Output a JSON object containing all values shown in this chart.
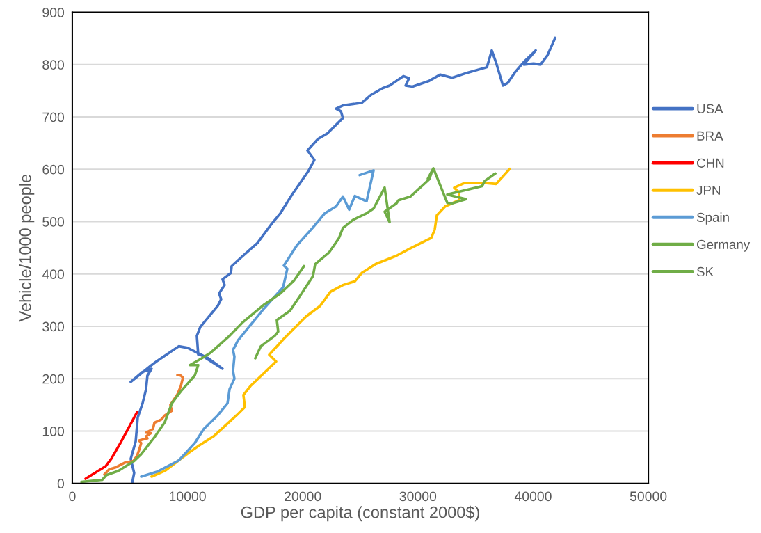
{
  "chart_data": {
    "type": "line",
    "xlabel": "GDP per capita (constant 2000$)",
    "ylabel": "Vehicle/1000 people",
    "xlim": [
      0,
      50000
    ],
    "ylim": [
      0,
      900
    ],
    "xticks": [
      0,
      10000,
      20000,
      30000,
      40000,
      50000
    ],
    "yticks": [
      0,
      100,
      200,
      300,
      400,
      500,
      600,
      700,
      800,
      900
    ],
    "grid": "y",
    "legend": "right",
    "marker": "none",
    "line_style": "solid",
    "series": [
      {
        "name": "USA",
        "color": "#4472c4",
        "x": [
          5190,
          5370,
          5070,
          5500,
          5680,
          6100,
          6400,
          6520,
          6880,
          6100,
          5070,
          6880,
          7300,
          9240,
          10000,
          11800,
          13040,
          11200,
          10930,
          10810,
          11110,
          12620,
          12920,
          12740,
          13220,
          13040,
          13770,
          13830,
          14670,
          16060,
          17270,
          18060,
          19080,
          20470,
          21010,
          20410,
          21320,
          22100,
          23490,
          23310,
          22890,
          23490,
          25120,
          25910,
          26930,
          27540,
          28740,
          29230,
          28930,
          29530,
          30980,
          31940,
          32970,
          34360,
          35990,
          36410,
          36780,
          37380,
          37800,
          38410,
          39190,
          40220,
          39190,
          40040,
          40640,
          41250,
          41910
        ],
        "values": [
          0,
          20,
          47,
          80,
          126,
          153,
          180,
          206,
          219,
          213,
          194,
          226,
          233,
          262,
          259,
          239,
          219,
          245,
          246,
          282,
          299,
          339,
          352,
          363,
          379,
          390,
          402,
          415,
          432,
          459,
          495,
          516,
          552,
          596,
          618,
          636,
          658,
          668,
          698,
          711,
          716,
          722,
          727,
          742,
          755,
          760,
          778,
          774,
          760,
          758,
          769,
          781,
          775,
          785,
          795,
          827,
          804,
          760,
          765,
          785,
          805,
          827,
          800,
          802,
          800,
          818,
          851
        ]
      },
      {
        "name": "BRA",
        "color": "#ed7d31",
        "x": [
          2780,
          3200,
          3800,
          4590,
          5310,
          5620,
          5800,
          5980,
          5800,
          6520,
          6400,
          6820,
          6400,
          7000,
          7130,
          7730,
          8030,
          8640,
          8510,
          9120,
          9420,
          9600,
          9420,
          9120
        ],
        "values": [
          17,
          27,
          31,
          40,
          43,
          53,
          64,
          77,
          82,
          86,
          90,
          96,
          97,
          104,
          116,
          122,
          130,
          139,
          150,
          170,
          186,
          202,
          206,
          207
        ]
      },
      {
        "name": "CHN",
        "color": "#ff0000",
        "x": [
          1150,
          2900,
          3380,
          4170,
          5620
        ],
        "values": [
          9,
          33,
          47,
          77,
          136
        ]
      },
      {
        "name": "JPN",
        "color": "#ffc000",
        "x": [
          6880,
          8030,
          9240,
          10200,
          11050,
          12260,
          14250,
          14980,
          14850,
          15460,
          17690,
          17090,
          18480,
          20290,
          21500,
          22400,
          23490,
          24520,
          25120,
          26330,
          28140,
          29350,
          31160,
          31460,
          31640,
          32360,
          33570,
          33570,
          33150,
          34060,
          35810,
          36780,
          37980
        ],
        "values": [
          13,
          24,
          44,
          60,
          73,
          90,
          130,
          146,
          169,
          186,
          233,
          246,
          279,
          319,
          339,
          366,
          379,
          386,
          402,
          419,
          435,
          449,
          469,
          485,
          512,
          529,
          541,
          556,
          565,
          574,
          574,
          572,
          601
        ]
      },
      {
        "name": "Spain",
        "color": "#5b9bd5",
        "x": [
          5980,
          7430,
          9240,
          10630,
          11410,
          12620,
          13470,
          13650,
          14070,
          13950,
          14070,
          13950,
          14370,
          14850,
          16670,
          18300,
          18660,
          18360,
          19500,
          20890,
          21920,
          22890,
          23490,
          24030,
          24520,
          25540,
          26150,
          24940
        ],
        "values": [
          13,
          23,
          44,
          77,
          104,
          130,
          153,
          180,
          200,
          215,
          242,
          255,
          273,
          286,
          335,
          375,
          410,
          416,
          455,
          489,
          516,
          529,
          548,
          523,
          549,
          539,
          598,
          589
        ]
      },
      {
        "name": "Germany",
        "color": "#70ad47",
        "x": [
          15880,
          16360,
          17570,
          17870,
          17750,
          18900,
          19870,
          20890,
          21080,
          22280,
          23130,
          23490,
          24340,
          25540,
          26150,
          27110,
          27540,
          27110,
          28140,
          28320,
          29350,
          30980,
          31160,
          30860,
          31340,
          32550,
          32970,
          34180,
          32550,
          35570,
          35810,
          36720
        ],
        "values": [
          239,
          262,
          282,
          290,
          312,
          330,
          362,
          396,
          419,
          441,
          468,
          488,
          503,
          516,
          525,
          565,
          499,
          519,
          535,
          541,
          548,
          581,
          592,
          582,
          602,
          536,
          535,
          543,
          552,
          568,
          578,
          592
        ]
      },
      {
        "name": "SK",
        "color": "#70ad47",
        "x": [
          790,
          2600,
          2960,
          3990,
          5370,
          5980,
          7190,
          8030,
          8640,
          9420,
          10630,
          10930,
          10200,
          11230,
          12020,
          13650,
          14850,
          16670,
          18060,
          19260,
          20110
        ],
        "values": [
          3,
          7,
          16,
          24,
          43,
          56,
          90,
          117,
          153,
          176,
          206,
          226,
          226,
          239,
          250,
          282,
          309,
          342,
          363,
          388,
          415
        ]
      }
    ]
  }
}
